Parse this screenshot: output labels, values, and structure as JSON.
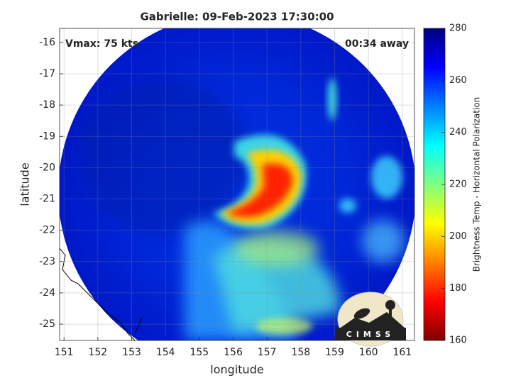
{
  "map": {
    "title": "Gabrielle: 09-Feb-2023 17:30:00",
    "xlabel": "longitude",
    "ylabel": "latitude",
    "xlim": [
      150.87,
      161.36
    ],
    "ylim": [
      -25.52,
      -15.55
    ],
    "xticks": [
      151,
      152,
      153,
      154,
      155,
      156,
      157,
      158,
      159,
      160,
      161
    ],
    "yticks": [
      -16,
      -17,
      -18,
      -19,
      -20,
      -21,
      -22,
      -23,
      -24,
      -25
    ],
    "grid": true,
    "annotations": [
      "Vmax: 75 kts",
      "00:34 away"
    ],
    "logo": "CIMSS",
    "colorbar": {
      "label": "Brightness Temp - Horizontal Polarization",
      "lim": [
        160,
        280
      ],
      "ticks": [
        160,
        180,
        200,
        220,
        240,
        260,
        280
      ],
      "colormap": "jet"
    }
  }
}
